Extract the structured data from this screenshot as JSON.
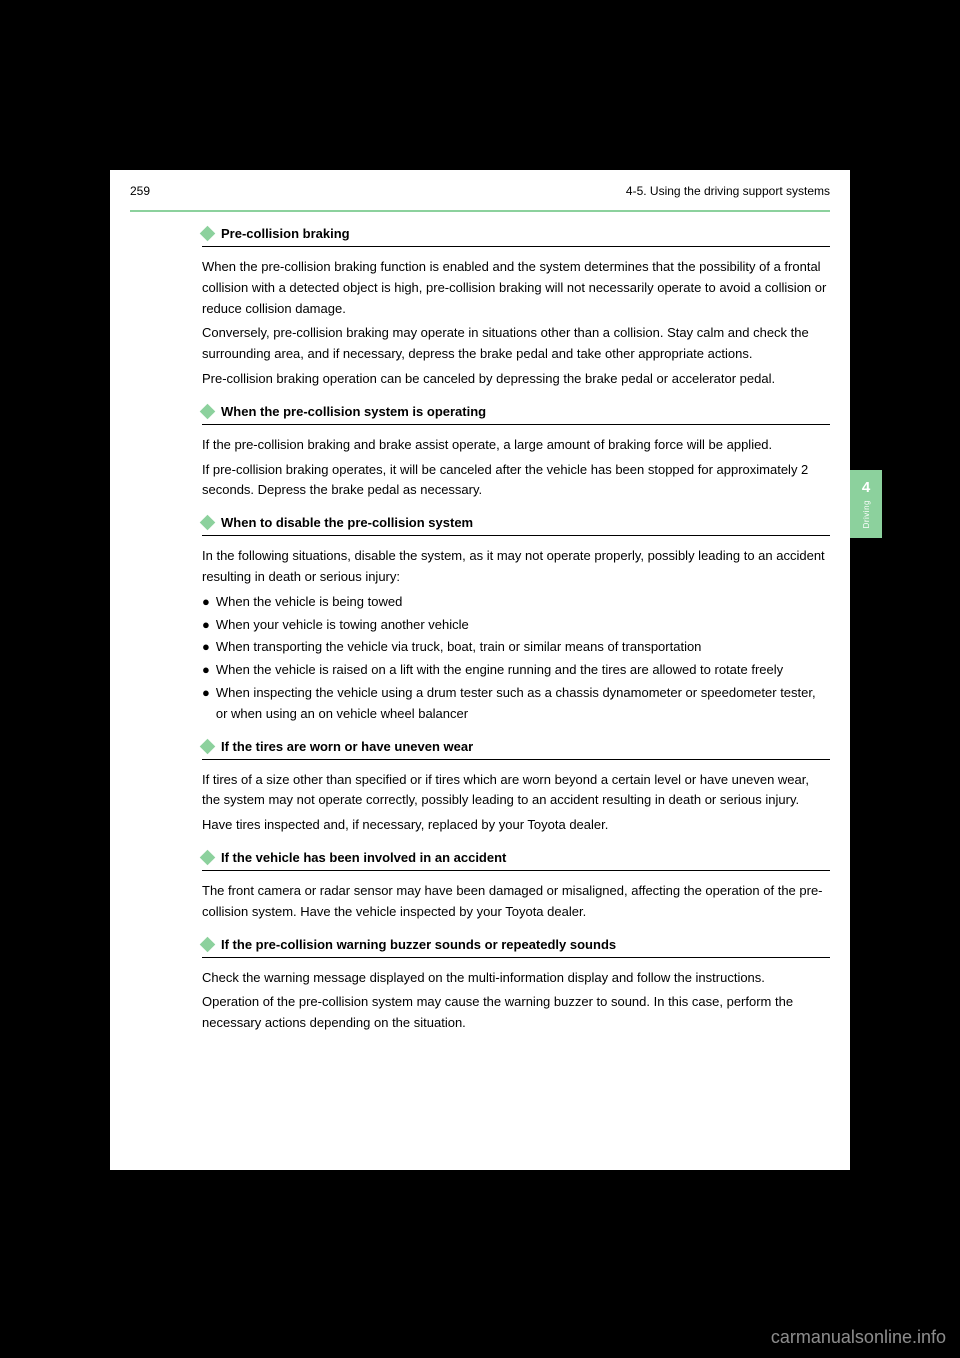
{
  "header": {
    "page_number": "259",
    "breadcrumb": "4-5. Using the driving support systems"
  },
  "tab": {
    "number": "4",
    "label": "Driving"
  },
  "sections": [
    {
      "title": "Pre-collision braking",
      "paragraphs": [
        "When the pre-collision braking function is enabled and the system determines that the possibility of a frontal collision with a detected object is high, pre-collision braking will not necessarily operate to avoid a collision or reduce collision damage.",
        "Conversely, pre-collision braking may operate in situations other than a collision. Stay calm and check the surrounding area, and if necessary, depress the brake pedal and take other appropriate actions.",
        "Pre-collision braking operation can be canceled by depressing the brake pedal or accelerator pedal."
      ]
    },
    {
      "title": "When the pre-collision system is operating",
      "paragraphs": [
        "If the pre-collision braking and brake assist operate, a large amount of braking force will be applied.",
        "If pre-collision braking operates, it will be canceled after the vehicle has been stopped for approximately 2 seconds. Depress the brake pedal as necessary."
      ]
    },
    {
      "title": "When to disable the pre-collision system",
      "paragraphs": [
        "In the following situations, disable the system, as it may not operate properly, possibly leading to an accident resulting in death or serious injury:"
      ],
      "bullets": [
        "When the vehicle is being towed",
        "When your vehicle is towing another vehicle",
        "When transporting the vehicle via truck, boat, train or similar means of transportation",
        "When the vehicle is raised on a lift with the engine running and the tires are allowed to rotate freely",
        "When inspecting the vehicle using a drum tester such as a chassis dynamometer or speedometer tester, or when using an on vehicle wheel balancer"
      ]
    },
    {
      "title": "If the tires are worn or have uneven wear",
      "paragraphs": [
        "If tires of a size other than specified or if tires which are worn beyond a certain level or have uneven wear, the system may not operate correctly, possibly leading to an accident resulting in death or serious injury.",
        "Have tires inspected and, if necessary, replaced by your Toyota dealer."
      ]
    },
    {
      "title": "If the vehicle has been involved in an accident",
      "paragraphs": [
        "The front camera or radar sensor may have been damaged or misaligned, affecting the operation of the pre-collision system. Have the vehicle inspected by your Toyota dealer."
      ]
    },
    {
      "title": "If the pre-collision warning buzzer sounds or repeatedly sounds",
      "paragraphs": [
        "Check the warning message displayed on the multi-information display and follow the instructions.",
        "Operation of the pre-collision system may cause the warning buzzer to sound. In this case, perform the necessary actions depending on the situation."
      ]
    }
  ],
  "watermark": "carmanualsonline.info"
}
